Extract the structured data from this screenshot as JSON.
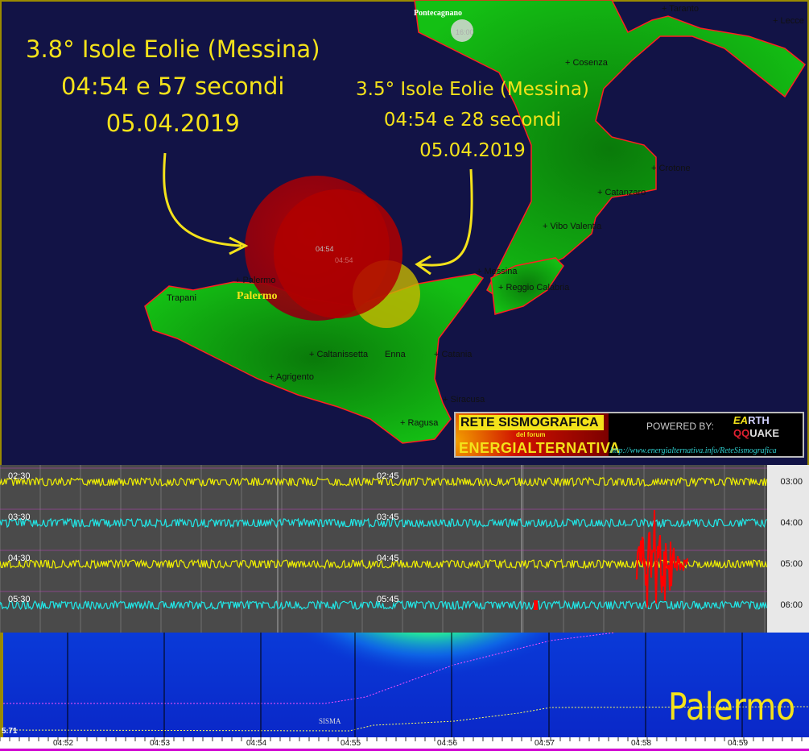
{
  "map": {
    "annotation_1": {
      "line1": "3.8° Isole Eolie (Messina)",
      "line2": "04:54 e 57 secondi",
      "line3": "05.04.2019"
    },
    "annotation_2": {
      "line1": "3.5° Isole Eolie (Messina)",
      "line2": "04:54 e 28 secondi",
      "line3": "05.04.2019"
    },
    "station_label": "Palermo",
    "station_2": "Pontecagnano",
    "station_2_time": "16:00",
    "quake_label_1": "04:54",
    "quake_label_2": "04:54",
    "cities": [
      "Taranto",
      "Lecce",
      "Cosenza",
      "Crotone",
      "Catanzaro",
      "Vibo Valentia",
      "Messina",
      "Reggio Calabria",
      "Palermo",
      "Trapani",
      "Caltanissetta",
      "Enna",
      "Catania",
      "Agrigento",
      "Siracusa",
      "Ragusa"
    ],
    "colors": {
      "sea": "#121346",
      "land": "#10b010",
      "border": "#ff2020",
      "annotation": "#f4e21a",
      "quake_big": "#b00000",
      "quake_small": "#c8b800"
    }
  },
  "banner": {
    "title": "RETE SISMOGRAFICA",
    "subtitle": "del forum",
    "name": "ENERGIALTERNATIVA",
    "powered_by": "POWERED BY:",
    "logo_line1_a": "EA",
    "logo_line1_b": "RTH",
    "logo_line2_a": "QQ",
    "logo_line2_b": "UAKE",
    "url": "http://www.energialternativa.info/ReteSismografica"
  },
  "seismogram": {
    "rows": [
      {
        "start": "02:30",
        "mid": "02:45",
        "end": "03:00",
        "color": "#f0f000"
      },
      {
        "start": "03:30",
        "mid": "03:45",
        "end": "04:00",
        "color": "#20e8e8"
      },
      {
        "start": "04:30",
        "mid": "04:45",
        "end": "05:00",
        "color": "#f0f000"
      },
      {
        "start": "05:30",
        "mid": "05:45",
        "end": "06:00",
        "color": "#20e8e8"
      }
    ],
    "event_color": "#ff0000"
  },
  "spectrogram": {
    "place": "Palermo",
    "marker": "SISMA",
    "scale_min": "5.71",
    "time_ticks": [
      "04:52",
      "04:53",
      "04:54",
      "04:55",
      "04:56",
      "04:57",
      "04:58",
      "04:59"
    ]
  }
}
